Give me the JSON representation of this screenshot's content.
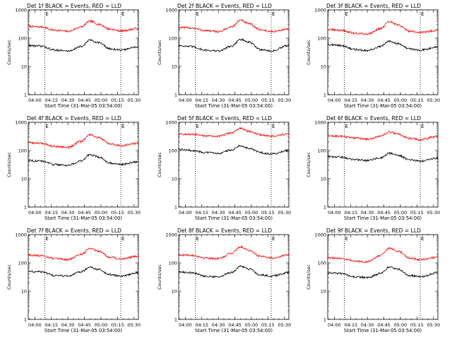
{
  "colors": {
    "background": "#ffffff",
    "axes": "#000000",
    "events": "#000000",
    "lld": "#ff0000"
  },
  "legend_note": "BLACK = Events, RED = LLD",
  "chart_data": [
    {
      "type": "line",
      "title": "Det 1f BLACK = Events, RED = LLD",
      "xlabel": "Start Time (31-Mar-05 03:54:00)",
      "ylabel": "Counts/sec",
      "yscale": "log",
      "ylim": [
        1,
        1000
      ],
      "ytick_labels": [
        "1",
        "10",
        "100",
        "1000"
      ],
      "xlim": [
        "03:54:00",
        "05:34:00"
      ],
      "xtick_labels": [
        "04:00",
        "04:15",
        "04:30",
        "04:45",
        "05:00",
        "05:15",
        "05:30"
      ],
      "markers": [
        {
          "label": "E",
          "time": "04:09:00"
        },
        {
          "label": "E",
          "time": "05:18:00"
        }
      ],
      "series": [
        {
          "color": "#ff0000",
          "times": [
            "03:54:00",
            "04:06:00",
            "04:18:00",
            "04:30:00",
            "04:42:00",
            "04:50:00",
            "04:58:00",
            "05:08:00",
            "05:18:00",
            "05:34:00"
          ],
          "values": [
            260,
            250,
            190,
            175,
            250,
            400,
            310,
            210,
            180,
            220
          ]
        },
        {
          "color": "#000000",
          "times": [
            "03:54:00",
            "04:06:00",
            "04:18:00",
            "04:30:00",
            "04:42:00",
            "04:50:00",
            "04:58:00",
            "05:08:00",
            "05:18:00",
            "05:34:00"
          ],
          "values": [
            55,
            52,
            38,
            35,
            50,
            85,
            70,
            42,
            38,
            50
          ]
        }
      ]
    },
    {
      "type": "line",
      "title": "Det 2f BLACK = Events, RED = LLD",
      "xlabel": "Start Time (31-Mar-05 03:54:00)",
      "ylabel": "Counts/sec",
      "yscale": "log",
      "ylim": [
        1,
        1000
      ],
      "ytick_labels": [
        "1",
        "10",
        "100",
        "1000"
      ],
      "xlim": [
        "03:54:00",
        "05:34:00"
      ],
      "xtick_labels": [
        "04:00",
        "04:15",
        "04:30",
        "04:45",
        "05:00",
        "05:15",
        "05:30"
      ],
      "markers": [
        {
          "label": "E",
          "time": "04:09:00"
        },
        {
          "label": "E",
          "time": "05:18:00"
        }
      ],
      "series": [
        {
          "color": "#ff0000",
          "times": [
            "03:54:00",
            "04:06:00",
            "04:18:00",
            "04:30:00",
            "04:42:00",
            "04:50:00",
            "04:58:00",
            "05:08:00",
            "05:18:00",
            "05:34:00"
          ],
          "values": [
            240,
            230,
            185,
            170,
            250,
            430,
            320,
            200,
            170,
            210
          ]
        },
        {
          "color": "#000000",
          "times": [
            "03:54:00",
            "04:06:00",
            "04:18:00",
            "04:30:00",
            "04:42:00",
            "04:50:00",
            "04:58:00",
            "05:08:00",
            "05:18:00",
            "05:34:00"
          ],
          "values": [
            55,
            50,
            38,
            35,
            52,
            90,
            72,
            40,
            35,
            55
          ]
        }
      ]
    },
    {
      "type": "line",
      "title": "Det 3f BLACK = Events, RED = LLD",
      "xlabel": "Start Time (31-Mar-05 03:54:00)",
      "ylabel": "Counts/sec",
      "yscale": "log",
      "ylim": [
        1,
        1000
      ],
      "ytick_labels": [
        "1",
        "10",
        "100",
        "1000"
      ],
      "xlim": [
        "03:54:00",
        "05:34:00"
      ],
      "xtick_labels": [
        "04:00",
        "04:15",
        "04:30",
        "04:45",
        "05:00",
        "05:15",
        "05:30"
      ],
      "markers": [
        {
          "label": "E",
          "time": "04:09:00"
        },
        {
          "label": "E",
          "time": "05:18:00"
        }
      ],
      "series": [
        {
          "color": "#ff0000",
          "times": [
            "03:54:00",
            "04:06:00",
            "04:18:00",
            "04:30:00",
            "04:42:00",
            "04:50:00",
            "04:58:00",
            "05:08:00",
            "05:18:00",
            "05:34:00"
          ],
          "values": [
            200,
            190,
            150,
            140,
            220,
            380,
            290,
            180,
            160,
            190
          ]
        },
        {
          "color": "#000000",
          "times": [
            "03:54:00",
            "04:06:00",
            "04:18:00",
            "04:30:00",
            "04:42:00",
            "04:50:00",
            "04:58:00",
            "05:08:00",
            "05:18:00",
            "05:34:00"
          ],
          "values": [
            60,
            55,
            40,
            36,
            50,
            80,
            65,
            42,
            38,
            50
          ]
        }
      ]
    },
    {
      "type": "line",
      "title": "Det 4f BLACK = Events, RED = LLD",
      "xlabel": "Start Time (31-Mar-05 03:54:00)",
      "ylabel": "Counts/sec",
      "yscale": "log",
      "ylim": [
        1,
        1000
      ],
      "ytick_labels": [
        "1",
        "10",
        "100",
        "1000"
      ],
      "xlim": [
        "03:54:00",
        "05:34:00"
      ],
      "xtick_labels": [
        "04:00",
        "04:15",
        "04:30",
        "04:45",
        "05:00",
        "05:15",
        "05:30"
      ],
      "markers": [
        {
          "label": "E",
          "time": "04:09:00"
        },
        {
          "label": "E",
          "time": "05:18:00"
        }
      ],
      "series": [
        {
          "color": "#ff0000",
          "times": [
            "03:54:00",
            "04:06:00",
            "04:18:00",
            "04:30:00",
            "04:42:00",
            "04:50:00",
            "04:58:00",
            "05:08:00",
            "05:18:00",
            "05:34:00"
          ],
          "values": [
            190,
            180,
            140,
            130,
            210,
            360,
            280,
            170,
            150,
            180
          ]
        },
        {
          "color": "#000000",
          "times": [
            "03:54:00",
            "04:06:00",
            "04:18:00",
            "04:30:00",
            "04:42:00",
            "04:50:00",
            "04:58:00",
            "05:08:00",
            "05:18:00",
            "05:34:00"
          ],
          "values": [
            45,
            42,
            32,
            30,
            42,
            72,
            58,
            36,
            32,
            40
          ]
        }
      ]
    },
    {
      "type": "line",
      "title": "Det 5f BLACK = Events, RED = LLD",
      "xlabel": "Start Time (31-Mar-05 03:54:00)",
      "ylabel": "Counts/sec",
      "yscale": "log",
      "ylim": [
        1,
        1000
      ],
      "ytick_labels": [
        "1",
        "10",
        "100",
        "1000"
      ],
      "xlim": [
        "03:54:00",
        "05:34:00"
      ],
      "xtick_labels": [
        "04:00",
        "04:15",
        "04:30",
        "04:45",
        "05:00",
        "05:15",
        "05:30"
      ],
      "markers": [
        {
          "label": "E",
          "time": "04:09:00"
        },
        {
          "label": "E",
          "time": "05:18:00"
        }
      ],
      "series": [
        {
          "color": "#ff0000",
          "times": [
            "03:54:00",
            "04:06:00",
            "04:18:00",
            "04:30:00",
            "04:42:00",
            "04:50:00",
            "04:58:00",
            "05:08:00",
            "05:18:00",
            "05:34:00"
          ],
          "values": [
            380,
            370,
            330,
            320,
            420,
            600,
            480,
            360,
            320,
            380
          ]
        },
        {
          "color": "#000000",
          "times": [
            "03:54:00",
            "04:06:00",
            "04:18:00",
            "04:30:00",
            "04:42:00",
            "04:50:00",
            "04:58:00",
            "05:08:00",
            "05:18:00",
            "05:34:00"
          ],
          "values": [
            110,
            100,
            85,
            80,
            105,
            150,
            120,
            85,
            75,
            100
          ]
        }
      ]
    },
    {
      "type": "line",
      "title": "Det 6f BLACK = Events, RED = LLD",
      "xlabel": "Start Time (31-Mar-05 03:54:00)",
      "ylabel": "Counts/sec",
      "yscale": "log",
      "ylim": [
        1,
        1000
      ],
      "ytick_labels": [
        "1",
        "10",
        "100",
        "1000"
      ],
      "xlim": [
        "03:54:00",
        "05:34:00"
      ],
      "xtick_labels": [
        "04:00",
        "04:15",
        "04:30",
        "04:45",
        "05:00",
        "05:15",
        "05:30"
      ],
      "markers": [
        {
          "label": "E",
          "time": "04:09:00"
        },
        {
          "label": "E",
          "time": "05:18:00"
        }
      ],
      "series": [
        {
          "color": "#ff0000",
          "times": [
            "03:54:00",
            "04:06:00",
            "04:18:00",
            "04:30:00",
            "04:42:00",
            "04:50:00",
            "04:58:00",
            "05:08:00",
            "05:18:00",
            "05:34:00"
          ],
          "values": [
            330,
            320,
            280,
            250,
            320,
            450,
            380,
            270,
            240,
            320
          ]
        },
        {
          "color": "#000000",
          "times": [
            "03:54:00",
            "04:06:00",
            "04:18:00",
            "04:30:00",
            "04:42:00",
            "04:50:00",
            "04:58:00",
            "05:08:00",
            "05:18:00",
            "05:34:00"
          ],
          "values": [
            60,
            58,
            48,
            44,
            55,
            80,
            68,
            48,
            42,
            55
          ]
        }
      ]
    },
    {
      "type": "line",
      "title": "Det 7f BLACK = Events, RED = LLD",
      "xlabel": "Start Time (31-Mar-05 03:54:00)",
      "ylabel": "Counts/sec",
      "yscale": "log",
      "ylim": [
        1,
        1000
      ],
      "ytick_labels": [
        "1",
        "10",
        "100",
        "1000"
      ],
      "xlim": [
        "03:54:00",
        "05:34:00"
      ],
      "xtick_labels": [
        "04:00",
        "04:15",
        "04:30",
        "04:45",
        "05:00",
        "05:15",
        "05:30"
      ],
      "markers": [
        {
          "label": "E",
          "time": "04:09:00"
        },
        {
          "label": "E",
          "time": "05:18:00"
        }
      ],
      "series": [
        {
          "color": "#ff0000",
          "times": [
            "03:54:00",
            "04:06:00",
            "04:18:00",
            "04:30:00",
            "04:42:00",
            "04:50:00",
            "04:58:00",
            "05:08:00",
            "05:18:00",
            "05:34:00"
          ],
          "values": [
            190,
            180,
            140,
            130,
            200,
            330,
            260,
            160,
            140,
            170
          ]
        },
        {
          "color": "#000000",
          "times": [
            "03:54:00",
            "04:06:00",
            "04:18:00",
            "04:30:00",
            "04:42:00",
            "04:50:00",
            "04:58:00",
            "05:08:00",
            "05:18:00",
            "05:34:00"
          ],
          "values": [
            50,
            48,
            36,
            34,
            48,
            70,
            58,
            38,
            34,
            45
          ]
        }
      ]
    },
    {
      "type": "line",
      "title": "Det 8f BLACK = Events, RED = LLD",
      "xlabel": "Start Time (31-Mar-05 03:54:00)",
      "ylabel": "Counts/sec",
      "yscale": "log",
      "ylim": [
        1,
        1000
      ],
      "ytick_labels": [
        "1",
        "10",
        "100",
        "1000"
      ],
      "xlim": [
        "03:54:00",
        "05:34:00"
      ],
      "xtick_labels": [
        "04:00",
        "04:15",
        "04:30",
        "04:45",
        "05:00",
        "05:15",
        "05:30"
      ],
      "markers": [
        {
          "label": "E",
          "time": "04:09:00"
        },
        {
          "label": "E",
          "time": "05:18:00"
        }
      ],
      "series": [
        {
          "color": "#ff0000",
          "times": [
            "03:54:00",
            "04:06:00",
            "04:18:00",
            "04:30:00",
            "04:42:00",
            "04:50:00",
            "04:58:00",
            "05:08:00",
            "05:18:00",
            "05:34:00"
          ],
          "values": [
            190,
            185,
            150,
            140,
            220,
            370,
            280,
            170,
            150,
            190
          ]
        },
        {
          "color": "#000000",
          "times": [
            "03:54:00",
            "04:06:00",
            "04:18:00",
            "04:30:00",
            "04:42:00",
            "04:50:00",
            "04:58:00",
            "05:08:00",
            "05:18:00",
            "05:34:00"
          ],
          "values": [
            48,
            45,
            34,
            32,
            46,
            75,
            60,
            38,
            34,
            45
          ]
        }
      ]
    },
    {
      "type": "line",
      "title": "Det 9f BLACK = Events, RED = LLD",
      "xlabel": "Start Time (31-Mar-05 03:54:00)",
      "ylabel": "Counts/sec",
      "yscale": "log",
      "ylim": [
        1,
        1000
      ],
      "ytick_labels": [
        "1",
        "10",
        "100",
        "1000"
      ],
      "xlim": [
        "03:54:00",
        "05:34:00"
      ],
      "xtick_labels": [
        "04:00",
        "04:15",
        "04:30",
        "04:45",
        "05:00",
        "05:15",
        "05:30"
      ],
      "markers": [
        {
          "label": "E",
          "time": "04:09:00"
        },
        {
          "label": "E",
          "time": "05:18:00"
        }
      ],
      "series": [
        {
          "color": "#ff0000",
          "times": [
            "03:54:00",
            "04:06:00",
            "04:18:00",
            "04:30:00",
            "04:42:00",
            "04:50:00",
            "04:58:00",
            "05:08:00",
            "05:18:00",
            "05:34:00"
          ],
          "values": [
            150,
            145,
            115,
            110,
            180,
            330,
            260,
            150,
            130,
            160
          ]
        },
        {
          "color": "#000000",
          "times": [
            "03:54:00",
            "04:06:00",
            "04:18:00",
            "04:30:00",
            "04:42:00",
            "04:50:00",
            "04:58:00",
            "05:08:00",
            "05:18:00",
            "05:34:00"
          ],
          "values": [
            45,
            42,
            32,
            30,
            42,
            72,
            60,
            36,
            32,
            45
          ]
        }
      ]
    }
  ]
}
